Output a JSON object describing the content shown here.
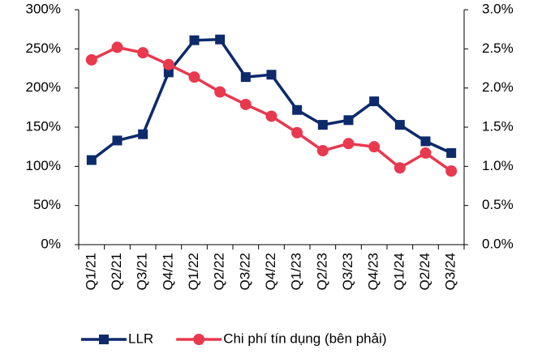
{
  "chart_data": {
    "type": "line",
    "categories": [
      "Q1/21",
      "Q2/21",
      "Q3/21",
      "Q4/21",
      "Q1/22",
      "Q2/22",
      "Q3/22",
      "Q4/22",
      "Q1/23",
      "Q2/23",
      "Q3/23",
      "Q4/23",
      "Q1/24",
      "Q2/24",
      "Q3/24"
    ],
    "series": [
      {
        "name": "LLR",
        "color": "#0d2a6b",
        "marker": "square",
        "values": [
          108,
          133,
          141,
          220,
          261,
          262,
          214,
          217,
          172,
          153,
          159,
          183,
          153,
          132,
          117
        ]
      },
      {
        "name": "Chi phí tín dụng (bên phải)",
        "color": "#e8394f",
        "marker": "circle",
        "axis": "y2",
        "values": [
          2.36,
          2.52,
          2.45,
          2.3,
          2.14,
          1.95,
          1.79,
          1.64,
          1.43,
          1.2,
          1.29,
          1.25,
          0.98,
          1.17,
          0.94
        ]
      }
    ],
    "ylim": [
      0,
      300
    ],
    "yticks": [
      {
        "value": 0,
        "label": "0%"
      },
      {
        "value": 50,
        "label": "50%"
      },
      {
        "value": 100,
        "label": "100%"
      },
      {
        "value": 150,
        "label": "150%"
      },
      {
        "value": 200,
        "label": "200%"
      },
      {
        "value": 250,
        "label": "250%"
      },
      {
        "value": 300,
        "label": "300%"
      }
    ],
    "y2lim": [
      0,
      3
    ],
    "y2ticks": [
      {
        "value": 0,
        "label": "0.0%"
      },
      {
        "value": 0.5,
        "label": "0.5%"
      },
      {
        "value": 1,
        "label": "1.0%"
      },
      {
        "value": 1.5,
        "label": "1.5%"
      },
      {
        "value": 2,
        "label": "2.0%"
      },
      {
        "value": 2.5,
        "label": "2.5%"
      },
      {
        "value": 3,
        "label": "3.0%"
      }
    ],
    "grid": false,
    "legend": "bottom"
  }
}
